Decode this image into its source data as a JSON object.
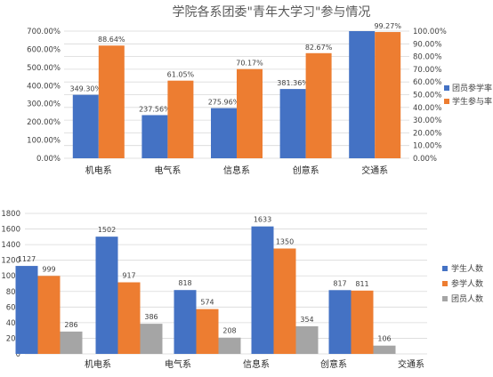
{
  "chart_data": [
    {
      "type": "bar",
      "title": "学院各系团委\"青年大学习\"参与情况",
      "categories": [
        "机电系",
        "电气系",
        "信息系",
        "创意系",
        "交通系"
      ],
      "ylim": [
        0,
        700
      ],
      "y_ticks": [
        "0.00%",
        "100.00%",
        "200.00%",
        "300.00%",
        "400.00%",
        "500.00%",
        "600.00%",
        "700.00%"
      ],
      "y2lim": [
        0,
        100
      ],
      "y2_ticks": [
        "0.00%",
        "10.00%",
        "20.00%",
        "30.00%",
        "40.00%",
        "50.00%",
        "60.00%",
        "70.00%",
        "80.00%",
        "90.00%",
        "100.00%"
      ],
      "series": [
        {
          "name": "团员参学率",
          "axis": "left",
          "color": "#4472C4",
          "values": [
            349.3,
            237.56,
            275.96,
            381.36,
            700
          ],
          "labels": [
            "349.30%",
            "237.56%",
            "275.96%",
            "381.36%",
            ""
          ]
        },
        {
          "name": "学生参与率",
          "axis": "right",
          "color": "#ED7D31",
          "values": [
            88.64,
            61.05,
            70.17,
            82.67,
            99.27
          ],
          "labels": [
            "88.64%",
            "61.05%",
            "70.17%",
            "82.67%",
            "99.27%"
          ]
        }
      ],
      "grid": true,
      "legend": "right"
    },
    {
      "type": "bar",
      "title": "",
      "categories": [
        "机电系",
        "电气系",
        "信息系",
        "创意系",
        "交通系"
      ],
      "ylim": [
        0,
        1800
      ],
      "y_ticks": [
        "0",
        "200",
        "400",
        "600",
        "800",
        "1000",
        "1200",
        "1400",
        "1600",
        "1800"
      ],
      "series": [
        {
          "name": "学生人数",
          "color": "#4472C4",
          "values": [
            1127,
            1502,
            818,
            1633,
            817
          ]
        },
        {
          "name": "参学人数",
          "color": "#ED7D31",
          "values": [
            999,
            917,
            574,
            1350,
            811
          ]
        },
        {
          "name": "团员人数",
          "color": "#A5A5A5",
          "values": [
            286,
            386,
            208,
            354,
            106
          ]
        }
      ],
      "grid": true,
      "legend": "right"
    }
  ]
}
